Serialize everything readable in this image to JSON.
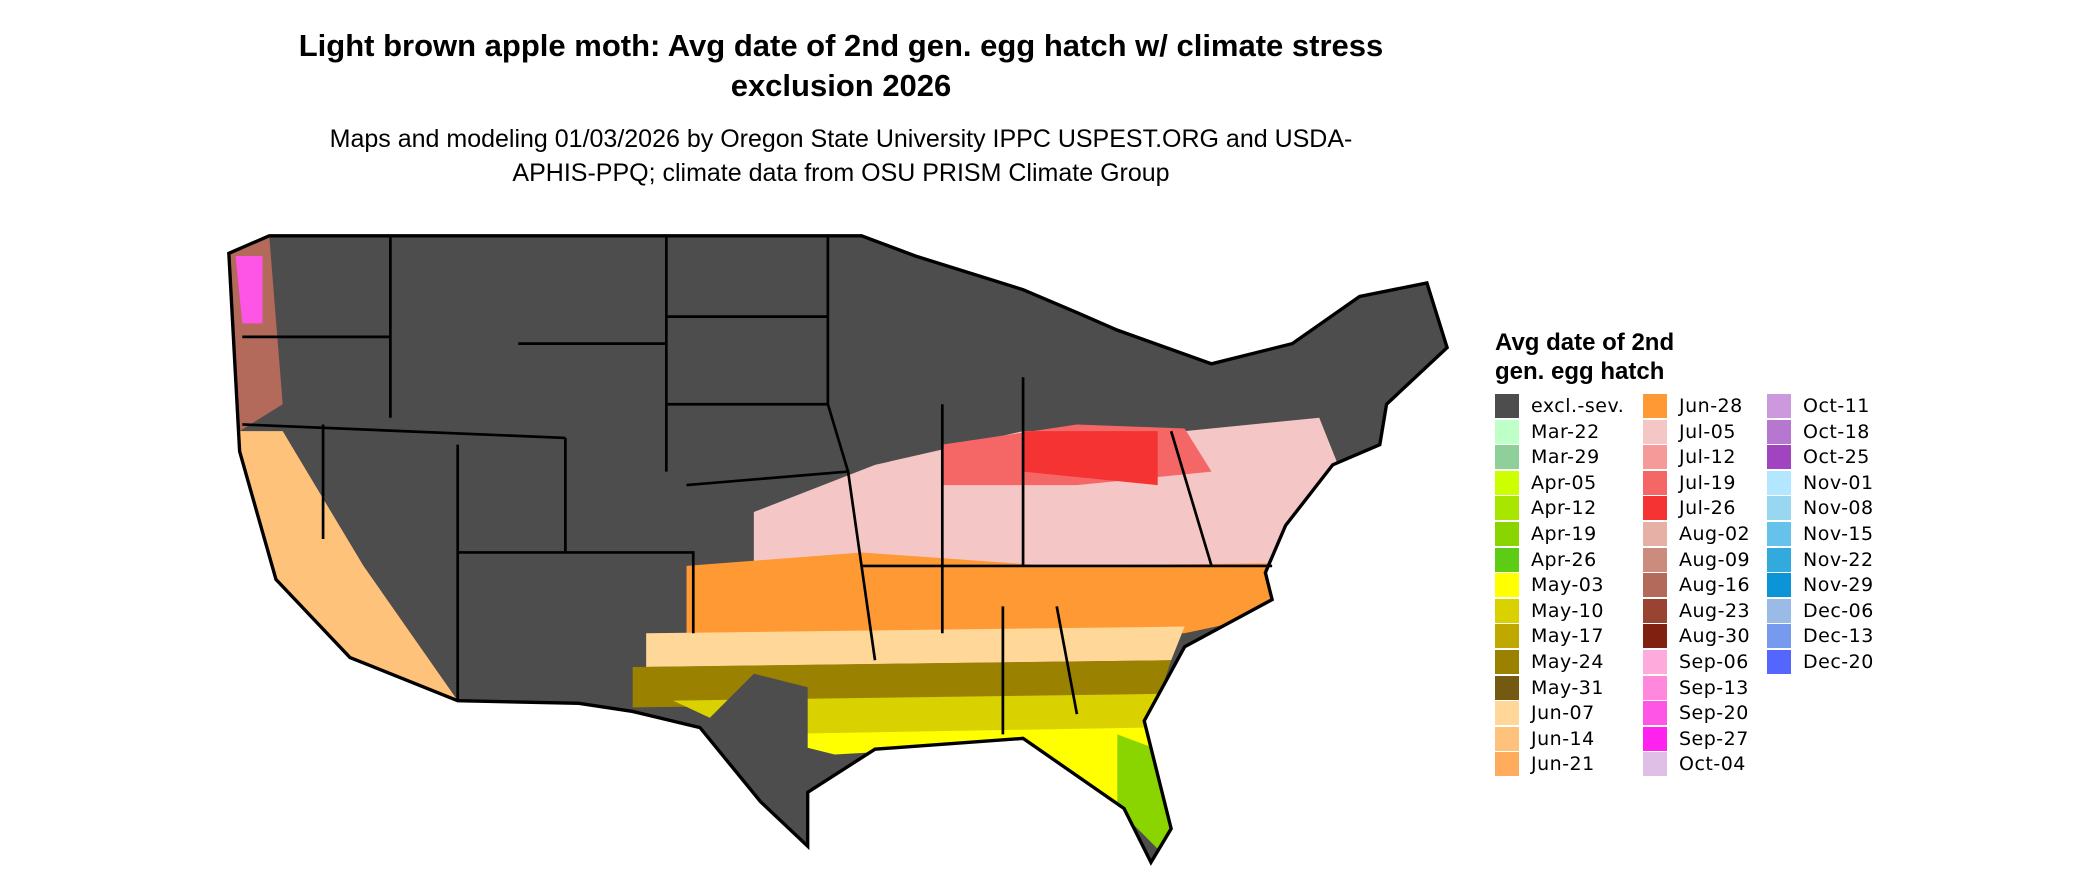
{
  "header": {
    "title": "Light brown apple moth: Avg date of 2nd gen. egg hatch w/ climate stress exclusion 2026",
    "subtitle": "Maps and modeling 01/03/2026 by Oregon State University IPPC USPEST.ORG and USDA-APHIS-PPQ; climate data from OSU PRISM Climate Group"
  },
  "legend": {
    "title": "Avg date of 2nd gen. egg hatch",
    "items": [
      {
        "label": "excl.-sev.",
        "color": "#4d4d4d"
      },
      {
        "label": "Mar-22",
        "color": "#bfffc8"
      },
      {
        "label": "Mar-29",
        "color": "#8fcf9a"
      },
      {
        "label": "Apr-05",
        "color": "#ccff00"
      },
      {
        "label": "Apr-12",
        "color": "#a8e600"
      },
      {
        "label": "Apr-19",
        "color": "#8ad400"
      },
      {
        "label": "Apr-26",
        "color": "#5ccc14"
      },
      {
        "label": "May-03",
        "color": "#ffff00"
      },
      {
        "label": "May-10",
        "color": "#d9d200"
      },
      {
        "label": "May-17",
        "color": "#bfa800"
      },
      {
        "label": "May-24",
        "color": "#9a8200"
      },
      {
        "label": "May-31",
        "color": "#735a10"
      },
      {
        "label": "Jun-07",
        "color": "#ffd899"
      },
      {
        "label": "Jun-14",
        "color": "#ffc27a"
      },
      {
        "label": "Jun-21",
        "color": "#ffad5c"
      },
      {
        "label": "Jun-28",
        "color": "#ff9933"
      },
      {
        "label": "Jul-05",
        "color": "#f5c6c6"
      },
      {
        "label": "Jul-12",
        "color": "#f59999"
      },
      {
        "label": "Jul-19",
        "color": "#f56666"
      },
      {
        "label": "Jul-26",
        "color": "#f53333"
      },
      {
        "label": "Aug-02",
        "color": "#e6b0a6"
      },
      {
        "label": "Aug-09",
        "color": "#cc8c7d"
      },
      {
        "label": "Aug-16",
        "color": "#b36a5a"
      },
      {
        "label": "Aug-23",
        "color": "#994433"
      },
      {
        "label": "Aug-30",
        "color": "#802010"
      },
      {
        "label": "Sep-06",
        "color": "#ffaadd"
      },
      {
        "label": "Sep-13",
        "color": "#ff88dd"
      },
      {
        "label": "Sep-20",
        "color": "#ff55e6"
      },
      {
        "label": "Sep-27",
        "color": "#ff22ee"
      },
      {
        "label": "Oct-04",
        "color": "#e0bfe6"
      },
      {
        "label": "Oct-11",
        "color": "#cc99dd"
      },
      {
        "label": "Oct-18",
        "color": "#b577d0"
      },
      {
        "label": "Oct-25",
        "color": "#a044c0"
      },
      {
        "label": "Nov-01",
        "color": "#b3e6ff"
      },
      {
        "label": "Nov-08",
        "color": "#99d6f0"
      },
      {
        "label": "Nov-15",
        "color": "#66c2ea"
      },
      {
        "label": "Nov-22",
        "color": "#33aadd"
      },
      {
        "label": "Nov-29",
        "color": "#0b94d6"
      },
      {
        "label": "Dec-06",
        "color": "#99bbe6"
      },
      {
        "label": "Dec-13",
        "color": "#7799ee"
      },
      {
        "label": "Dec-20",
        "color": "#5566ff"
      }
    ]
  }
}
